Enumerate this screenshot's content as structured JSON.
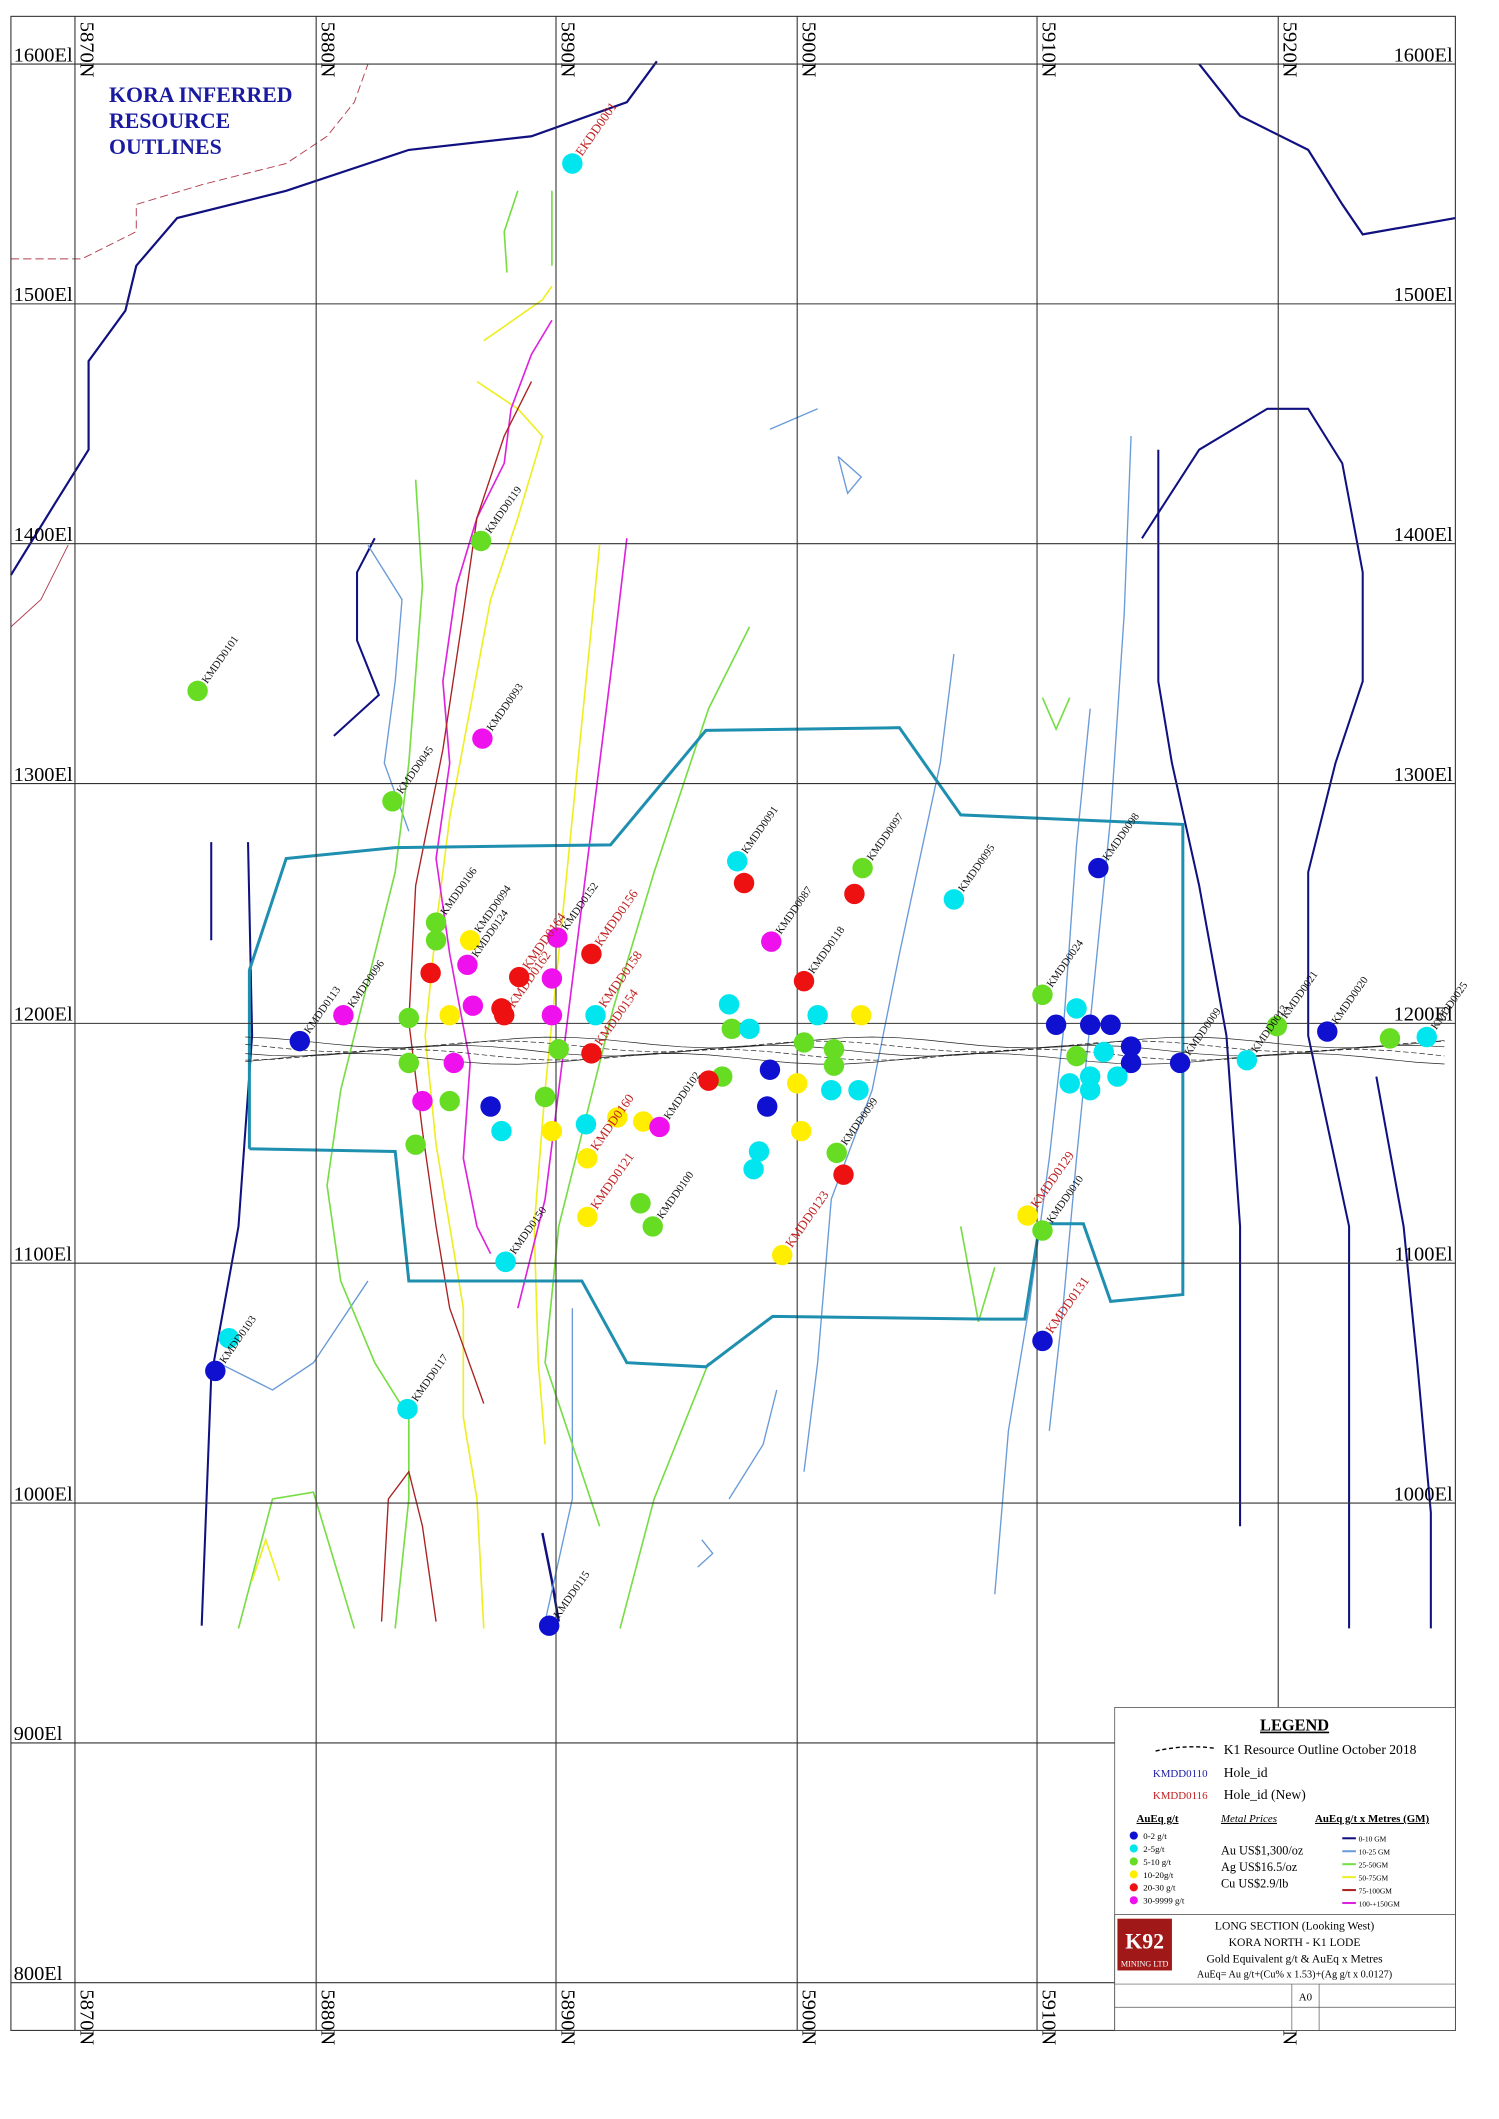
{
  "title": [
    "KORA INFERRED",
    "RESOURCE",
    "OUTLINES"
  ],
  "northing_labels": [
    "5870N",
    "5880N",
    "5890N",
    "5900N",
    "5910N",
    "5920N"
  ],
  "elevation_labels": [
    "1600El",
    "1500El",
    "1400El",
    "1300El",
    "1200El",
    "1100El",
    "1000El",
    "900El",
    "800El"
  ],
  "holes": [
    {
      "id": "EKDD0001",
      "new": true,
      "dot": "#00e5ee"
    },
    {
      "id": "KMDD0119",
      "new": false,
      "dot": "#66dd22"
    },
    {
      "id": "KMDD0101",
      "new": false,
      "dot": "#66dd22"
    },
    {
      "id": "KMDD0093",
      "new": false,
      "dot": "#ee11ee"
    },
    {
      "id": "KMDD0045",
      "new": false,
      "dot": "#66dd22"
    },
    {
      "id": "KMDD0091",
      "new": false,
      "dot": "#00e5ee"
    },
    {
      "id": "KMDD0097",
      "new": false,
      "dot": "#66dd22"
    },
    {
      "id": "KMDD0095",
      "new": false,
      "dot": "#00e5ee"
    },
    {
      "id": "KMDD0098",
      "new": false,
      "dot": "#1010d0"
    },
    {
      "id": "KMDD0106",
      "new": false,
      "dot": "#66dd22"
    },
    {
      "id": "KMDD0094",
      "new": false,
      "dot": "#ffee00"
    },
    {
      "id": "KMDD0124",
      "new": false,
      "dot": "#ee11ee"
    },
    {
      "id": "KMDD0152",
      "new": false,
      "dot": "#ee11ee"
    },
    {
      "id": "KMDD0156",
      "new": true,
      "dot": "#ee1111"
    },
    {
      "id": "KMDD0087",
      "new": false,
      "dot": "#ee11ee"
    },
    {
      "id": "KMDD0118",
      "new": false,
      "dot": "#ee1111"
    },
    {
      "id": "KMDD0024",
      "new": false,
      "dot": "#66dd22"
    },
    {
      "id": "KMDD0096",
      "new": false,
      "dot": "#ee11ee"
    },
    {
      "id": "KMDD0113",
      "new": false,
      "dot": "#1010d0"
    },
    {
      "id": "KMDD0021",
      "new": false,
      "dot": "#66dd22"
    },
    {
      "id": "KMDD0020",
      "new": false,
      "dot": "#1010d0"
    },
    {
      "id": "KMDD0025",
      "new": false,
      "dot": "#00e5ee"
    },
    {
      "id": "KMDD0013",
      "new": false,
      "dot": "#00e5ee"
    },
    {
      "id": "KMDD0009",
      "new": false,
      "dot": "#1010d0"
    },
    {
      "id": "KMDD0158",
      "new": true,
      "dot": "#00e5ee"
    },
    {
      "id": "KMDD0154",
      "new": true,
      "dot": "#ee1111"
    },
    {
      "id": "KMDD0160",
      "new": true,
      "dot": "#ffee00"
    },
    {
      "id": "KMDD0102",
      "new": false,
      "dot": "#ee11ee"
    },
    {
      "id": "KMDD0100",
      "new": false,
      "dot": "#66dd22"
    },
    {
      "id": "KMDD0099",
      "new": false,
      "dot": "#66dd22"
    },
    {
      "id": "KMDD0121",
      "new": true,
      "dot": "#ffee00"
    },
    {
      "id": "KMDD0123",
      "new": true,
      "dot": "#ffee00"
    },
    {
      "id": "KMDD0129",
      "new": true,
      "dot": "#ffee00"
    },
    {
      "id": "KMDD0010",
      "new": false,
      "dot": "#66dd22"
    },
    {
      "id": "KMDD0131",
      "new": true,
      "dot": "#1010d0"
    },
    {
      "id": "KMDD0103",
      "new": false,
      "dot": "#1010d0"
    },
    {
      "id": "KMDD0117",
      "new": false,
      "dot": "#00e5ee"
    },
    {
      "id": "KMDD0115",
      "new": false,
      "dot": "#1010d0"
    },
    {
      "id": "KMDD0150",
      "new": false,
      "dot": "#00e5ee"
    },
    {
      "id": "KMDD0162",
      "new": true,
      "dot": "#ee1111"
    },
    {
      "id": "KMDD0164",
      "new": true,
      "dot": "#ee1111"
    }
  ],
  "legend": {
    "title": "LEGEND",
    "outline": "K1 Resource Outline October 2018",
    "hole_sample": "KMDD0110",
    "hole_label": "Hole_id",
    "new_sample": "KMDD0116",
    "new_label": "Hole_id (New)",
    "grade_title": "AuEq g/t",
    "grades": [
      {
        "label": "0-2 g/t",
        "color": "#1010d0"
      },
      {
        "label": "2-5g/t",
        "color": "#00e5ee"
      },
      {
        "label": "5-10 g/t",
        "color": "#66dd22"
      },
      {
        "label": "10-20g/t",
        "color": "#ffee00"
      },
      {
        "label": "20-30 g/t",
        "color": "#ee1111"
      },
      {
        "label": "30-9999 g/t",
        "color": "#ee11ee"
      }
    ],
    "prices_title": "Metal Prices",
    "prices": [
      "Au US$1,300/oz",
      "Ag US$16.5/oz",
      "Cu US$2.9/lb"
    ],
    "gm_title": "AuEq g/t x Metres (GM)",
    "gm": [
      {
        "label": "0-10 GM",
        "color": "#101080"
      },
      {
        "label": "10-25 GM",
        "color": "#6a9bd8"
      },
      {
        "label": "25-50GM",
        "color": "#77dd44"
      },
      {
        "label": "50-75GM",
        "color": "#eeee22"
      },
      {
        "label": "75-100GM",
        "color": "#aa2222"
      },
      {
        "label": "100-+150GM",
        "color": "#dd22dd"
      }
    ]
  },
  "title_block": {
    "logo_top": "K92",
    "logo_bottom": "MINING LTD",
    "lines": [
      "LONG SECTION (Looking West)",
      "KORA NORTH - K1 LODE",
      "Gold Equivalent g/t & AuEq x Metres",
      "AuEq= Au g/t+(Cu% x 1.53)+(Ag g/t x 0.0127)"
    ],
    "sheet": "A0"
  }
}
